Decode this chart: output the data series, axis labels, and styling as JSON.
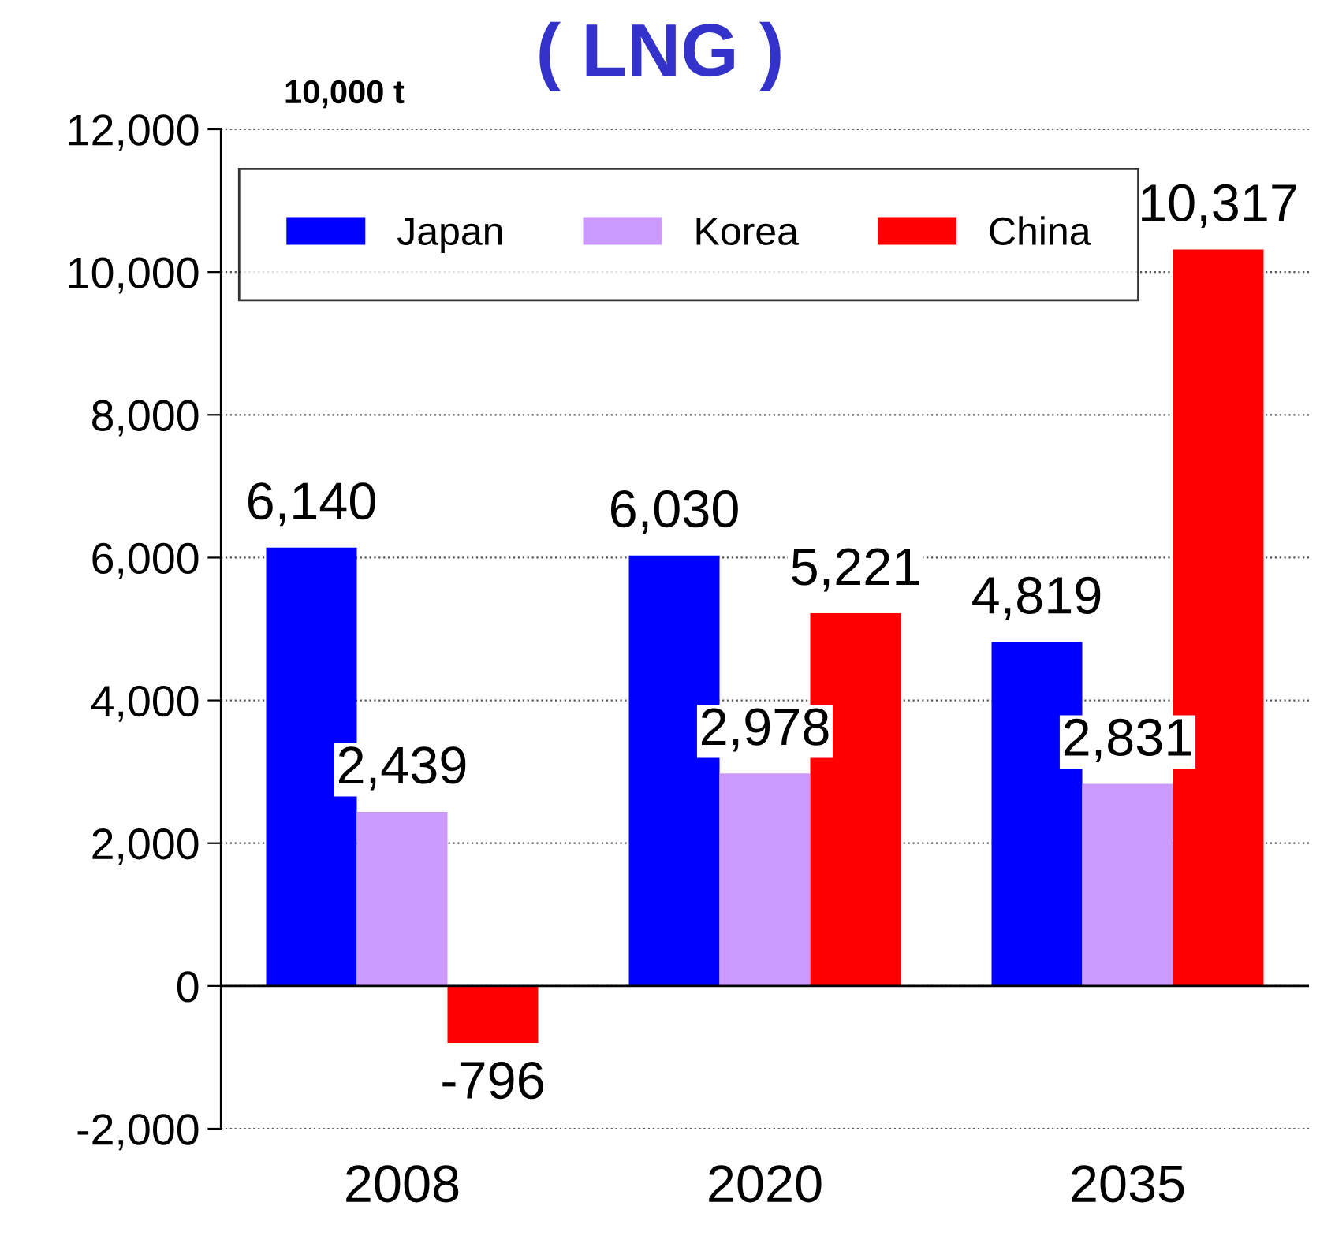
{
  "chart_data": {
    "type": "bar",
    "title": "( LNG )",
    "ylabel": "10,000 t",
    "categories": [
      "2008",
      "2020",
      "2035"
    ],
    "series": [
      {
        "name": "Japan",
        "color": "#0000ff",
        "values": [
          6140,
          6030,
          4819
        ],
        "value_labels": [
          "6,140",
          "6,030",
          "4,819"
        ]
      },
      {
        "name": "Korea",
        "color": "#cc99ff",
        "values": [
          2439,
          2978,
          2831
        ],
        "value_labels": [
          "2,439",
          "2,978",
          "2,831"
        ]
      },
      {
        "name": "China",
        "color": "#ff0000",
        "values": [
          -796,
          5221,
          10317
        ],
        "value_labels": [
          "-796",
          "5,221",
          "10,317"
        ]
      }
    ],
    "ylim": [
      -2000,
      12000
    ],
    "yticks": [
      {
        "value": -2000,
        "label": "-2,000"
      },
      0,
      {
        "value": 2000,
        "label": "2,000"
      },
      {
        "value": 4000,
        "label": "4,000"
      },
      {
        "value": 6000,
        "label": "6,000"
      },
      {
        "value": 8000,
        "label": "8,000"
      },
      {
        "value": 10000,
        "label": "10,000"
      },
      {
        "value": 12000,
        "label": "12,000"
      }
    ],
    "grid": "y",
    "legend": "top"
  }
}
